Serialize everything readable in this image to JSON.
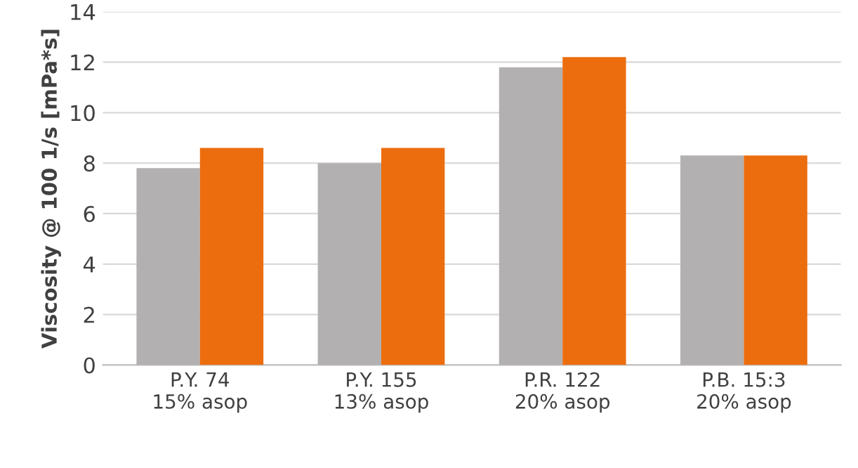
{
  "chart_data": {
    "type": "bar",
    "ylabel": "Viscosity @ 100 1/s [mPa*s]",
    "categories": [
      "P.Y. 74\n15% asop",
      "P.Y. 155\n13% asop",
      "P.R. 122\n20% asop",
      "P.B. 15:3\n20% asop"
    ],
    "series": [
      {
        "color": "#b2b0b1",
        "values": [
          7.8,
          8.0,
          11.8,
          8.3
        ]
      },
      {
        "color": "#ec6d0e",
        "values": [
          8.6,
          8.6,
          12.2,
          8.3
        ]
      }
    ],
    "ylim": [
      0,
      14
    ],
    "yticks": [
      0,
      2,
      4,
      6,
      8,
      10,
      12,
      14
    ],
    "grid": "y",
    "legend": false
  }
}
